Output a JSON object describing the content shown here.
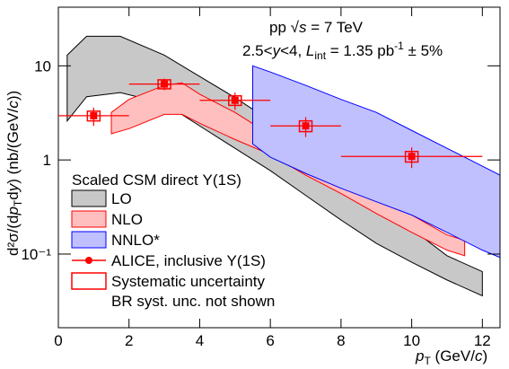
{
  "chart_data": {
    "type": "band",
    "xlabel": [
      "p",
      "T",
      " (GeV/",
      "c",
      ")"
    ],
    "ylabel": [
      "d²σ/(d",
      "p",
      "T",
      "d",
      "y",
      ") (nb/(GeV/",
      "c",
      "))"
    ],
    "annotations": [
      [
        "pp ",
        "√",
        "s",
        " = 7 TeV"
      ],
      [
        "2.5<",
        "y",
        "<4, ",
        "L",
        "int",
        " = 1.35 pb",
        "-1",
        " ± 5%"
      ]
    ],
    "xlim": [
      0,
      12.5
    ],
    "xticks": [
      0,
      2,
      4,
      6,
      8,
      10,
      12
    ],
    "ylim": [
      0.0165,
      42
    ],
    "log_y": true,
    "yticks": [
      {
        "value": 10,
        "label": "10"
      },
      {
        "value": 1,
        "label": "1"
      },
      {
        "value": 0.1,
        "label": "10⁻¹"
      }
    ],
    "legend_title": "Scaled CSM direct Υ(1S)",
    "legend_notes": [
      "Systematic uncertainty",
      "BR syst. unc. not shown"
    ],
    "series": [
      {
        "name": "LO",
        "color": "#c8c8c8",
        "edge": "#000000",
        "x": [
          0.25,
          0.8,
          1.75,
          3,
          4,
          5,
          6,
          7,
          8,
          9,
          10,
          11,
          12
        ],
        "high": [
          13,
          20.6,
          20.6,
          13,
          7.7,
          4.6,
          2.6,
          1.33,
          0.69,
          0.36,
          0.185,
          0.096,
          0.065
        ],
        "low": [
          2.6,
          4.7,
          5.2,
          4.0,
          2.3,
          1.33,
          0.77,
          0.42,
          0.23,
          0.13,
          0.082,
          0.053,
          0.036
        ]
      },
      {
        "name": "NLO",
        "color": "#ffbfbf",
        "edge": "#ff0000",
        "x": [
          1.5,
          2,
          3,
          3.5,
          4,
          5,
          6,
          7,
          8,
          9,
          10,
          11,
          11.5
        ],
        "high": [
          3.2,
          4.4,
          6.2,
          6.6,
          5,
          3.2,
          1.85,
          1.07,
          0.65,
          0.4,
          0.26,
          0.16,
          0.14
        ],
        "low": [
          1.9,
          2.15,
          3.05,
          3.05,
          2.45,
          1.65,
          1.14,
          0.69,
          0.44,
          0.27,
          0.17,
          0.11,
          0.096
        ]
      },
      {
        "name": "NNLO*",
        "color": "#c0c0ff",
        "edge": "#0000ff",
        "x": [
          5.5,
          6,
          7,
          8,
          9,
          10,
          11,
          12,
          12.5
        ],
        "high": [
          10,
          8.6,
          6.2,
          4.4,
          3.2,
          2.06,
          1.33,
          0.86,
          0.69
        ],
        "low": [
          1.48,
          1.07,
          0.72,
          0.5,
          0.36,
          0.26,
          0.17,
          0.11,
          0.092
        ]
      }
    ],
    "points": {
      "name": "ALICE, inclusive Υ(1S)",
      "color": "#ff0000",
      "x": [
        1,
        3,
        5,
        7,
        10
      ],
      "xerr": [
        1,
        1,
        1,
        1,
        2
      ],
      "values": [
        2.95,
        6.4,
        4.3,
        2.3,
        1.09
      ],
      "yerr": [
        0.65,
        0.9,
        0.9,
        0.55,
        0.27
      ],
      "syst": [
        0.35,
        0.7,
        0.5,
        0.3,
        0.14
      ]
    }
  }
}
